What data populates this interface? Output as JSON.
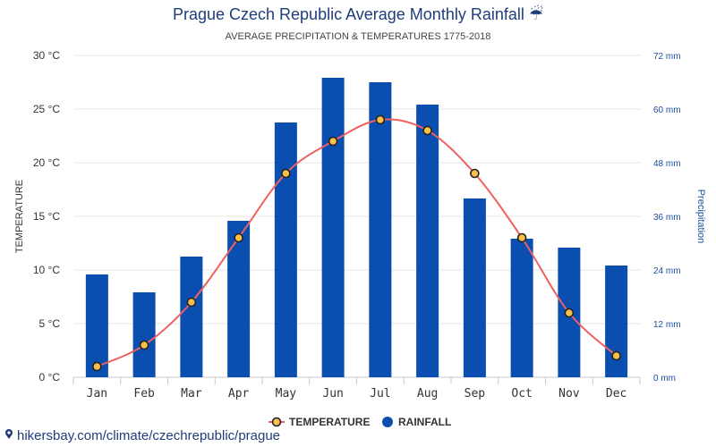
{
  "chart_data": {
    "type": "bar",
    "title": "Prague Czech Republic Average Monthly Rainfall",
    "subtitle": "AVERAGE PRECIPITATION & TEMPERATURES 1775-2018",
    "categories": [
      "Jan",
      "Feb",
      "Mar",
      "Apr",
      "May",
      "Jun",
      "Jul",
      "Aug",
      "Sep",
      "Oct",
      "Nov",
      "Dec"
    ],
    "series": [
      {
        "name": "TEMPERATURE",
        "type": "line",
        "axis": "left",
        "color": "#f06060",
        "values": [
          1,
          3,
          7,
          13,
          19,
          22,
          24,
          23,
          19,
          13,
          6,
          2
        ]
      },
      {
        "name": "RAINFALL",
        "type": "bar",
        "axis": "right",
        "color": "#0a4fb0",
        "values": [
          23,
          19,
          27,
          35,
          57,
          67,
          66,
          61,
          40,
          31,
          29,
          25
        ]
      }
    ],
    "ylabel": "TEMPERATURE",
    "ylabel_right": "Precipitation",
    "ylim": [
      0,
      30
    ],
    "ylim_right": [
      0,
      72
    ],
    "y_ticks": [
      "0 °C",
      "5 °C",
      "10 °C",
      "15 °C",
      "20 °C",
      "25 °C",
      "30 °C"
    ],
    "y_ticks_right": [
      "0 mm",
      "12 mm",
      "24 mm",
      "36 mm",
      "48 mm",
      "60 mm",
      "72 mm"
    ],
    "grid": true,
    "legend_position": "bottom-center"
  },
  "watermark": "hikersbay.com/climate/czechrepublic/prague",
  "colors": {
    "title": "#1f3d7a",
    "right_axis": "#1a4fa0",
    "marker_fill": "#f7c04a"
  }
}
